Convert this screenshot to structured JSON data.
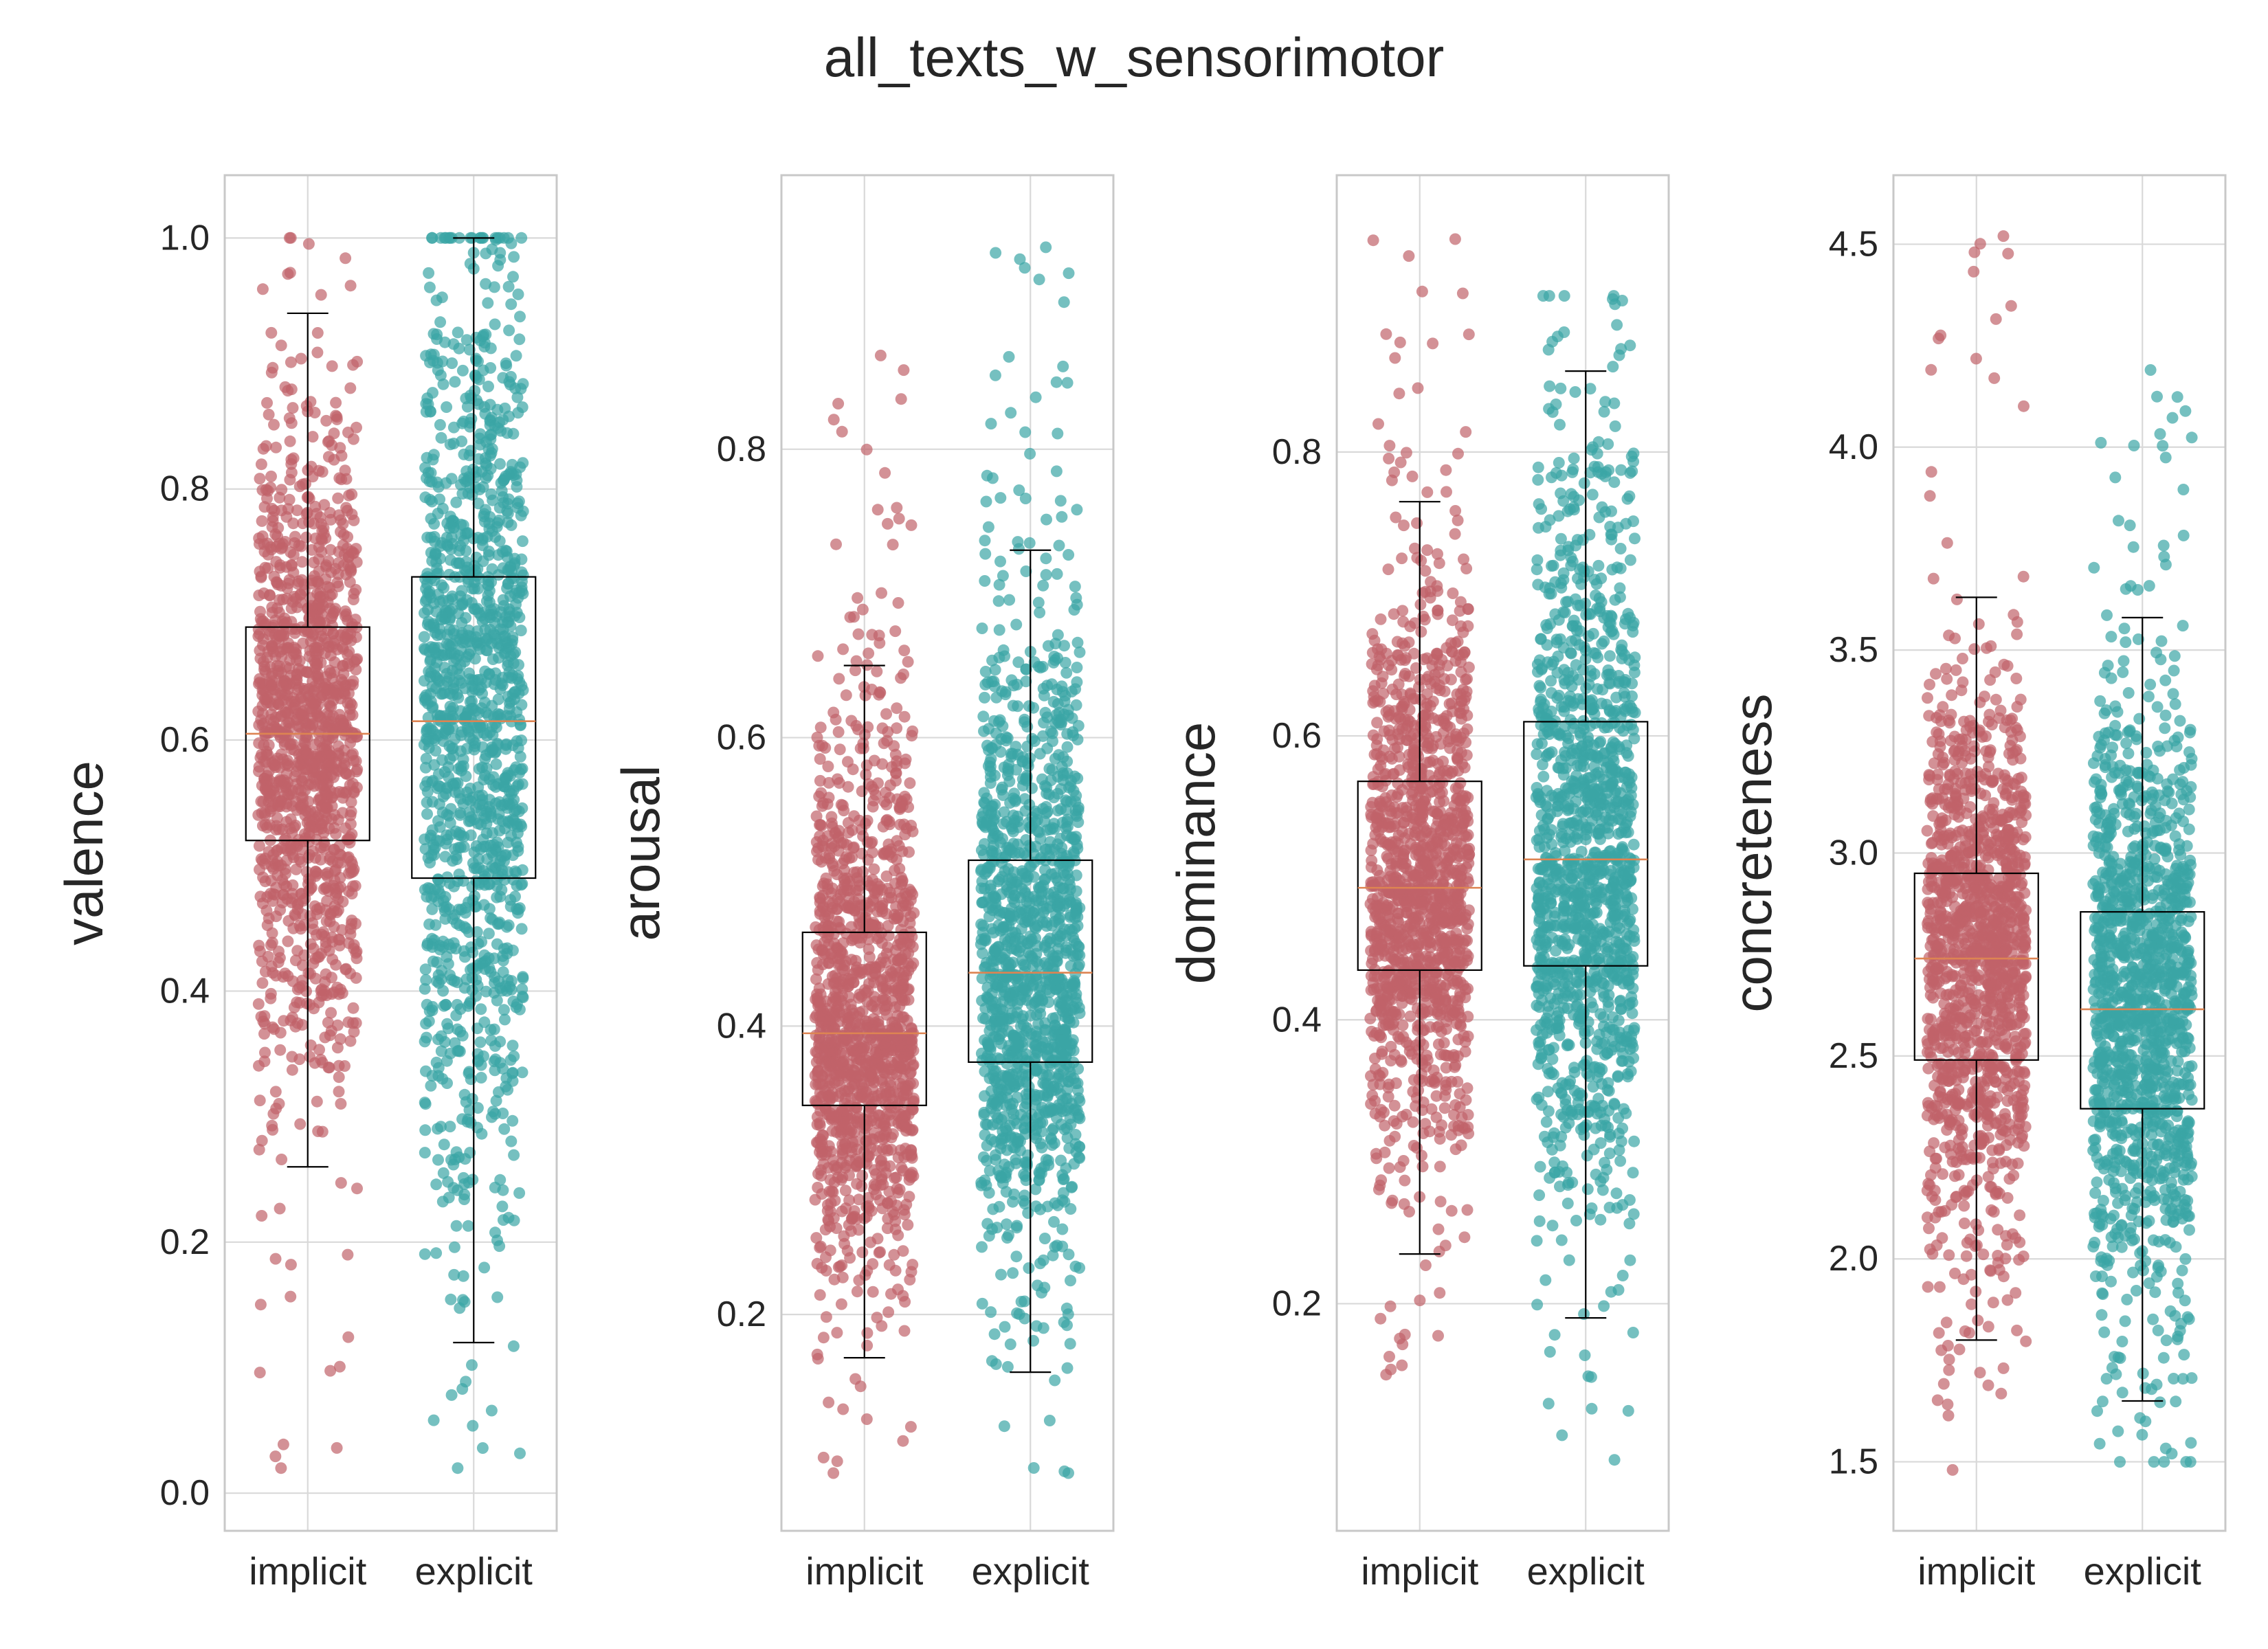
{
  "figure": {
    "suptitle": "all_texts_w_sensorimotor",
    "colors": {
      "implicit": "#c1626a",
      "explicit": "#3aa5a5",
      "median": "#dd8452",
      "box": "#000000",
      "grid": "#d9d9d9",
      "spine": "#c8c8c8"
    }
  },
  "chart_data": [
    {
      "type": "box-strip",
      "ylabel": "valence",
      "categories": [
        "implicit",
        "explicit"
      ],
      "ylim": [
        -0.03,
        1.05
      ],
      "yticks": [
        0.0,
        0.2,
        0.4,
        0.6,
        0.8,
        1.0
      ],
      "grid": true,
      "series": [
        {
          "name": "implicit",
          "color": "#c1626a",
          "n_points": 1300,
          "min": 0.02,
          "max": 1.0,
          "box": {
            "whisker_low": 0.26,
            "q1": 0.52,
            "median": 0.605,
            "q3": 0.69,
            "whisker_high": 0.94
          }
        },
        {
          "name": "explicit",
          "color": "#3aa5a5",
          "n_points": 1300,
          "min": 0.02,
          "max": 1.0,
          "box": {
            "whisker_low": 0.12,
            "q1": 0.49,
            "median": 0.615,
            "q3": 0.73,
            "whisker_high": 1.0
          }
        }
      ]
    },
    {
      "type": "box-strip",
      "ylabel": "arousal",
      "categories": [
        "implicit",
        "explicit"
      ],
      "ylim": [
        0.05,
        0.99
      ],
      "yticks": [
        0.2,
        0.4,
        0.6,
        0.8
      ],
      "grid": true,
      "series": [
        {
          "name": "implicit",
          "color": "#c1626a",
          "n_points": 1300,
          "min": 0.09,
          "max": 0.865,
          "box": {
            "whisker_low": 0.17,
            "q1": 0.345,
            "median": 0.395,
            "q3": 0.465,
            "whisker_high": 0.65
          }
        },
        {
          "name": "explicit",
          "color": "#3aa5a5",
          "n_points": 1300,
          "min": 0.09,
          "max": 0.94,
          "box": {
            "whisker_low": 0.16,
            "q1": 0.375,
            "median": 0.437,
            "q3": 0.515,
            "whisker_high": 0.73
          }
        }
      ]
    },
    {
      "type": "box-strip",
      "ylabel": "dominance",
      "categories": [
        "implicit",
        "explicit"
      ],
      "ylim": [
        0.04,
        0.995
      ],
      "yticks": [
        0.2,
        0.4,
        0.6,
        0.8
      ],
      "grid": true,
      "series": [
        {
          "name": "implicit",
          "color": "#c1626a",
          "n_points": 1300,
          "min": 0.15,
          "max": 0.95,
          "box": {
            "whisker_low": 0.235,
            "q1": 0.435,
            "median": 0.493,
            "q3": 0.568,
            "whisker_high": 0.765
          }
        },
        {
          "name": "explicit",
          "color": "#3aa5a5",
          "n_points": 1300,
          "min": 0.09,
          "max": 0.91,
          "box": {
            "whisker_low": 0.19,
            "q1": 0.438,
            "median": 0.513,
            "q3": 0.61,
            "whisker_high": 0.857
          }
        }
      ]
    },
    {
      "type": "box-strip",
      "ylabel": "concreteness",
      "categories": [
        "implicit",
        "explicit"
      ],
      "ylim": [
        1.33,
        4.67
      ],
      "yticks": [
        1.5,
        2.0,
        2.5,
        3.0,
        3.5,
        4.0,
        4.5
      ],
      "grid": true,
      "series": [
        {
          "name": "implicit",
          "color": "#c1626a",
          "n_points": 1300,
          "min": 1.48,
          "max": 4.52,
          "box": {
            "whisker_low": 1.8,
            "q1": 2.49,
            "median": 2.74,
            "q3": 2.95,
            "whisker_high": 3.63
          }
        },
        {
          "name": "explicit",
          "color": "#3aa5a5",
          "n_points": 1300,
          "min": 1.5,
          "max": 4.19,
          "box": {
            "whisker_low": 1.65,
            "q1": 2.37,
            "median": 2.615,
            "q3": 2.855,
            "whisker_high": 3.58
          }
        }
      ]
    }
  ]
}
